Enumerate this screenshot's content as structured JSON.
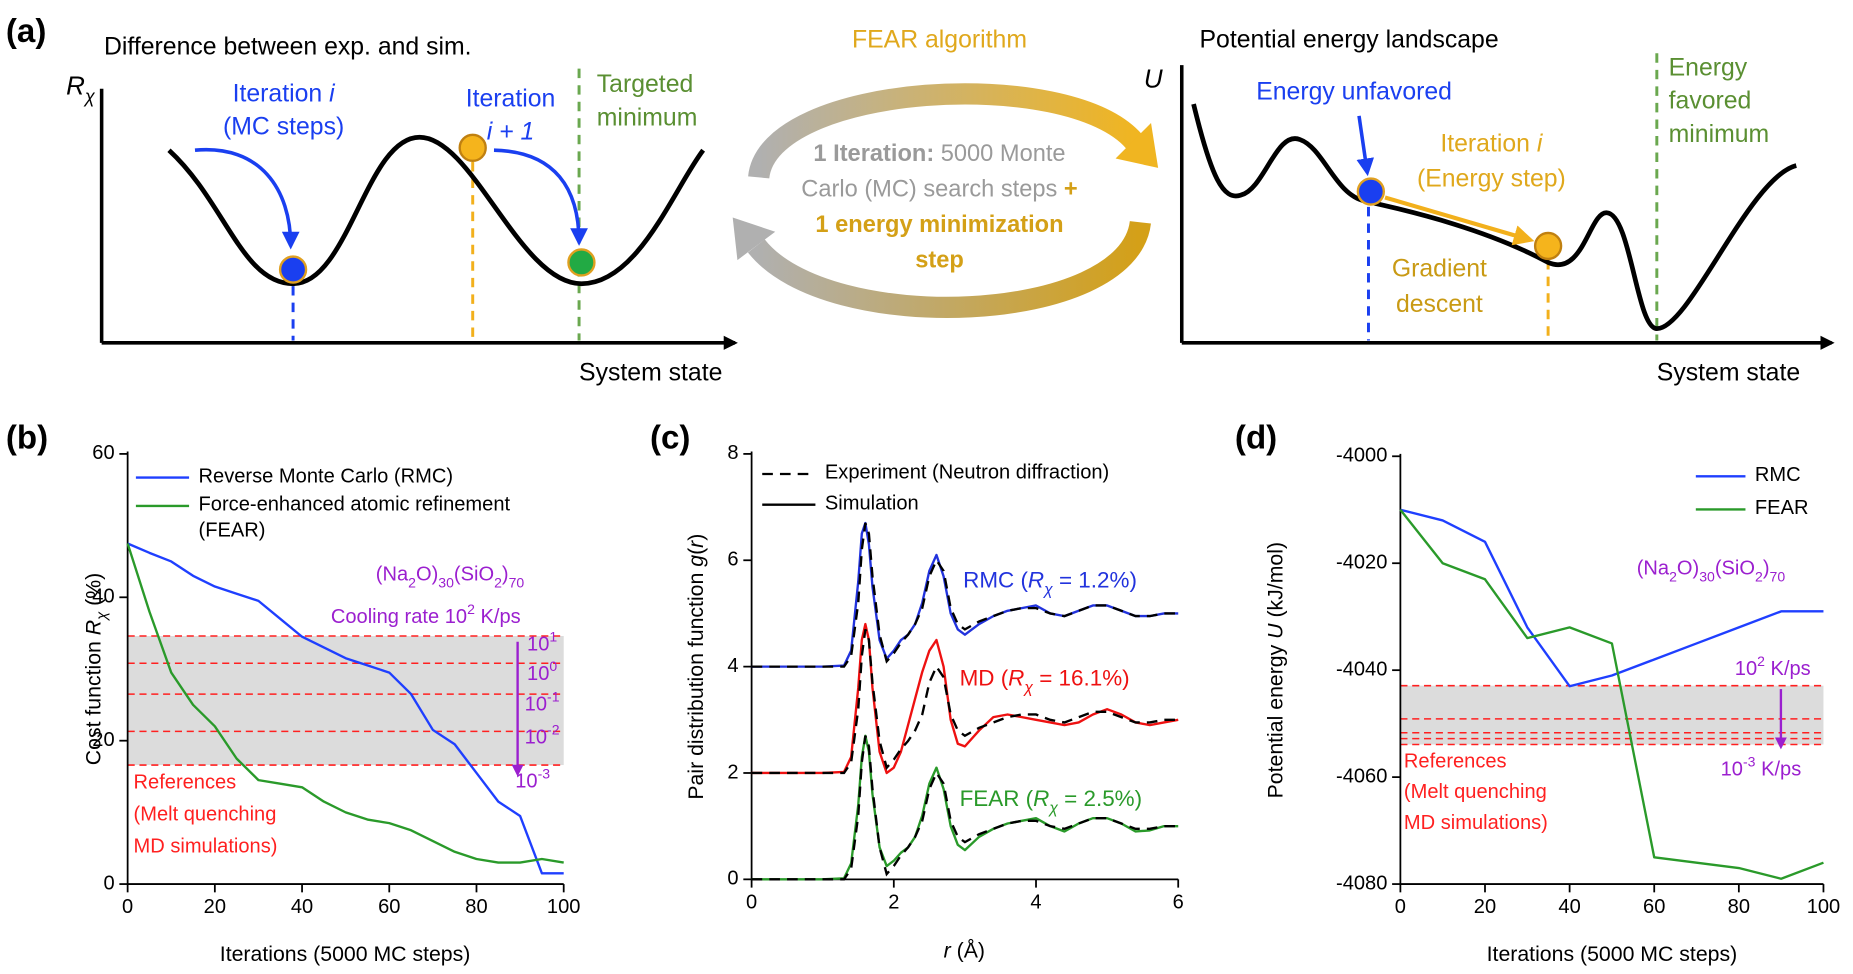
{
  "diagram": {
    "texts": [
      {
        "lines": [
          [
            "(a)"
          ]
        ]
      },
      {
        "lines": [
          [
            "Difference between exp. and sim."
          ]
        ]
      },
      {
        "lines": [
          [
            {
              "text": "R",
              "fmt": "i"
            },
            {
              "text": "χ",
              "fmt": "sub-i"
            }
          ]
        ]
      },
      {
        "lines": [
          [
            "Iteration ",
            {
              "text": "i",
              "fmt": "i"
            }
          ],
          [
            "(MC steps)"
          ]
        ],
        "color": "#1a3ff0"
      },
      {
        "lines": [
          [
            "Iteration"
          ],
          [
            {
              "text": "i + 1",
              "fmt": "i"
            }
          ]
        ],
        "color": "#1a3ff0"
      },
      {
        "lines": [
          [
            "Targeted"
          ],
          [
            "minimum"
          ]
        ],
        "color": "#5a8f32"
      },
      {
        "lines": [
          [
            "System state"
          ]
        ]
      },
      {
        "lines": [
          [
            "FEAR algorithm"
          ]
        ],
        "color": "#e0a81c"
      },
      {
        "lines": [
          [
            {
              "text": "1 Iteration:",
              "fmt": "b"
            },
            " 5000 Monte"
          ],
          [
            "Carlo (MC) search steps ",
            {
              "text": "+",
              "fmt": "b",
              "color": "#d4a017"
            }
          ],
          [
            {
              "text": "1 energy minimization",
              "fmt": "b",
              "color": "#d4a017"
            }
          ],
          [
            {
              "text": "step",
              "fmt": "b",
              "color": "#d4a017"
            }
          ]
        ],
        "color": "#9a9a9a"
      },
      {
        "lines": [
          [
            "Potential energy landscape"
          ]
        ]
      },
      {
        "lines": [
          [
            {
              "text": "U",
              "fmt": "i"
            }
          ]
        ]
      },
      {
        "lines": [
          [
            "Energy unfavored"
          ]
        ],
        "color": "#1a3ff0"
      },
      {
        "lines": [
          [
            "Iteration ",
            {
              "text": "i",
              "fmt": "i"
            }
          ],
          [
            "(Energy step)"
          ]
        ],
        "color": "#e0a81c"
      },
      {
        "lines": [
          [
            "Gradient"
          ],
          [
            "descent"
          ]
        ],
        "color": "#c99a14"
      },
      {
        "lines": [
          [
            "Energy"
          ],
          [
            "favored"
          ],
          [
            "minimum"
          ]
        ],
        "color": "#5a8f32"
      },
      {
        "lines": [
          [
            "System state"
          ]
        ]
      }
    ]
  },
  "chart_data": [
    {
      "type": "line",
      "panel_label": "(b)",
      "xlabel": [
        "Iterations (5000 MC steps)"
      ],
      "ylabel": [
        "Cost function ",
        {
          "text": "R",
          "fmt": "i"
        },
        {
          "text": "χ",
          "fmt": "sub-i"
        },
        " (%)"
      ],
      "x": [
        0,
        5,
        10,
        15,
        20,
        25,
        30,
        35,
        40,
        45,
        50,
        55,
        60,
        65,
        70,
        75,
        80,
        85,
        90,
        95,
        100
      ],
      "series": [
        {
          "name": "Reverse Monte Carlo (RMC)",
          "color": "#1f3fff",
          "values": [
            47.5,
            46.2,
            45,
            43,
            41.5,
            40.5,
            39.5,
            37,
            34.5,
            33,
            31.5,
            30.5,
            29.5,
            26.5,
            21.5,
            19.5,
            15.5,
            11.5,
            9.5,
            1.5,
            1.5
          ]
        },
        {
          "name": "Force-enhanced atomic refinement (FEAR)",
          "color": "#2a9a2a",
          "values": [
            47.5,
            38,
            29.5,
            25,
            22,
            17.5,
            14.5,
            14,
            13.5,
            11.5,
            10,
            9,
            8.5,
            7.5,
            6,
            4.5,
            3.5,
            3,
            3,
            3.5,
            3
          ]
        }
      ],
      "xlim": [
        0,
        100
      ],
      "xticks": [
        0,
        20,
        40,
        60,
        80,
        100
      ],
      "ylim": [
        0,
        60
      ],
      "yticks": [
        0,
        20,
        40,
        60
      ],
      "legend": "upper left",
      "references": {
        "values": [
          34.6,
          30.8,
          26.5,
          21.3,
          16.6
        ],
        "color": "#ff2020",
        "band_color": "#dcdcdc"
      },
      "annotations": [
        {
          "segments": [
            "(Na",
            {
              "text": "2",
              "fmt": "sub"
            },
            "O)",
            {
              "text": "30",
              "fmt": "sub"
            },
            "(SiO",
            {
              "text": "2",
              "fmt": "sub"
            },
            ")",
            {
              "text": "70",
              "fmt": "sub"
            }
          ],
          "color": "#9b1fcf"
        },
        {
          "segments": [
            "Cooling rate 10",
            {
              "text": "2",
              "fmt": "sup"
            },
            " K/ps"
          ],
          "color": "#9b1fcf"
        },
        {
          "segments": [
            "10",
            {
              "text": "1",
              "fmt": "sup"
            }
          ],
          "color": "#9b1fcf"
        },
        {
          "segments": [
            "10",
            {
              "text": "0",
              "fmt": "sup"
            }
          ],
          "color": "#9b1fcf"
        },
        {
          "segments": [
            "10",
            {
              "text": "-1",
              "fmt": "sup"
            }
          ],
          "color": "#9b1fcf"
        },
        {
          "segments": [
            "10",
            {
              "text": "-2",
              "fmt": "sup"
            }
          ],
          "color": "#9b1fcf"
        },
        {
          "segments": [
            "10",
            {
              "text": "-3",
              "fmt": "sup"
            }
          ],
          "color": "#9b1fcf"
        },
        {
          "segments": [
            "References"
          ],
          "color": "#ff2020"
        },
        {
          "segments": [
            "(Melt quenching"
          ],
          "color": "#ff2020"
        },
        {
          "segments": [
            "MD simulations)"
          ],
          "color": "#ff2020"
        }
      ]
    },
    {
      "type": "line",
      "panel_label": "(c)",
      "xlabel": [
        {
          "text": "r",
          "fmt": "i"
        },
        " (Å)"
      ],
      "ylabel": [
        "Pair distribution function ",
        {
          "text": "g",
          "fmt": "i"
        },
        "(",
        {
          "text": "r",
          "fmt": "i"
        },
        ")"
      ],
      "x": [
        0,
        0.5,
        1.0,
        1.3,
        1.4,
        1.5,
        1.55,
        1.6,
        1.65,
        1.7,
        1.8,
        1.9,
        2.0,
        2.1,
        2.2,
        2.3,
        2.4,
        2.5,
        2.6,
        2.7,
        2.8,
        2.9,
        3.0,
        3.2,
        3.4,
        3.6,
        3.8,
        4.0,
        4.2,
        4.4,
        4.6,
        4.8,
        5.0,
        5.2,
        5.4,
        5.6,
        5.8,
        6.0
      ],
      "legend_entries": [
        {
          "name": "Experiment (Neutron diffraction)",
          "dash": true
        },
        {
          "name": "Simulation",
          "dash": false
        }
      ],
      "experiment_color": "#000000",
      "series": [
        {
          "label": [
            "RMC (",
            {
              "text": "R",
              "fmt": "i"
            },
            {
              "text": "χ",
              "fmt": "sub-i"
            },
            " = 1.2%)"
          ],
          "color": "#2233dd",
          "values": [
            4,
            4,
            4,
            4.02,
            4.3,
            5.6,
            6.5,
            6.7,
            6.3,
            5.5,
            4.5,
            4.15,
            4.3,
            4.5,
            4.6,
            4.8,
            5.2,
            5.8,
            6.1,
            5.7,
            5.0,
            4.7,
            4.6,
            4.8,
            4.95,
            5.05,
            5.1,
            5.15,
            5.0,
            4.95,
            5.05,
            5.15,
            5.15,
            5.05,
            4.95,
            4.95,
            5.0,
            5.0
          ],
          "experiment": [
            4,
            4,
            4,
            4.0,
            4.2,
            5.2,
            6.2,
            6.7,
            6.5,
            5.7,
            4.6,
            4.1,
            4.25,
            4.45,
            4.6,
            4.8,
            5.1,
            5.7,
            6.0,
            5.8,
            5.1,
            4.8,
            4.7,
            4.85,
            4.95,
            5.05,
            5.1,
            5.1,
            5.0,
            4.95,
            5.05,
            5.15,
            5.15,
            5.05,
            4.95,
            4.95,
            5.0,
            5.0
          ]
        },
        {
          "label": [
            "MD (",
            {
              "text": "R",
              "fmt": "i"
            },
            {
              "text": "χ",
              "fmt": "sub-i"
            },
            " = 16.1%)"
          ],
          "color": "#ee1111",
          "values": [
            2,
            2,
            2,
            2.02,
            2.3,
            3.6,
            4.5,
            4.8,
            4.5,
            3.6,
            2.4,
            2.0,
            2.1,
            2.4,
            2.9,
            3.4,
            3.9,
            4.3,
            4.5,
            4.0,
            3.0,
            2.55,
            2.5,
            2.8,
            3.05,
            3.1,
            3.05,
            3.0,
            2.95,
            2.9,
            2.95,
            3.1,
            3.2,
            3.1,
            2.95,
            2.9,
            2.95,
            3.0
          ],
          "experiment": [
            2,
            2,
            2,
            2.0,
            2.2,
            3.2,
            4.2,
            4.7,
            4.5,
            3.7,
            2.6,
            2.1,
            2.25,
            2.45,
            2.6,
            2.8,
            3.1,
            3.7,
            4.0,
            3.8,
            3.1,
            2.8,
            2.7,
            2.85,
            2.95,
            3.05,
            3.1,
            3.1,
            3.0,
            2.95,
            3.05,
            3.15,
            3.15,
            3.05,
            2.95,
            2.95,
            3.0,
            3.0
          ]
        },
        {
          "label": [
            "FEAR (",
            {
              "text": "R",
              "fmt": "i"
            },
            {
              "text": "χ",
              "fmt": "sub-i"
            },
            " = 2.5%)"
          ],
          "color": "#2a9a2a",
          "values": [
            0,
            0,
            0,
            0.02,
            0.3,
            1.4,
            2.3,
            2.7,
            2.4,
            1.6,
            0.6,
            0.25,
            0.35,
            0.5,
            0.6,
            0.8,
            1.2,
            1.8,
            2.1,
            1.7,
            1.0,
            0.65,
            0.55,
            0.8,
            0.95,
            1.05,
            1.1,
            1.15,
            1.0,
            0.9,
            1.05,
            1.15,
            1.15,
            1.05,
            0.9,
            0.92,
            1.0,
            1.0
          ],
          "experiment": [
            0,
            0,
            0,
            0.0,
            0.2,
            1.2,
            2.2,
            2.7,
            2.5,
            1.7,
            0.6,
            0.1,
            0.25,
            0.45,
            0.6,
            0.8,
            1.1,
            1.7,
            2.0,
            1.8,
            1.1,
            0.8,
            0.7,
            0.85,
            0.95,
            1.05,
            1.1,
            1.1,
            1.0,
            0.95,
            1.05,
            1.15,
            1.15,
            1.05,
            0.95,
            0.95,
            1.0,
            1.0
          ]
        }
      ],
      "xlim": [
        0,
        6
      ],
      "xticks": [
        0,
        2,
        4,
        6
      ],
      "ylim": [
        0,
        8
      ],
      "yticks": [
        0,
        2,
        4,
        6,
        8
      ],
      "legend": "upper left"
    },
    {
      "type": "line",
      "panel_label": "(d)",
      "xlabel": [
        "Iterations (5000 MC steps)"
      ],
      "ylabel": [
        "Potential energy ",
        {
          "text": "U",
          "fmt": "i"
        },
        " (kJ/mol)"
      ],
      "x": [
        0,
        10,
        20,
        30,
        40,
        50,
        60,
        70,
        80,
        90,
        100
      ],
      "series": [
        {
          "name": "RMC",
          "color": "#1f3fff",
          "values": [
            -4010,
            -4012,
            -4016,
            -4032,
            -4043,
            -4041,
            -4038,
            -4035,
            -4032,
            -4029,
            -4029
          ]
        },
        {
          "name": "FEAR",
          "color": "#2a9a2a",
          "values": [
            -4010,
            -4020,
            -4023,
            -4034,
            -4032,
            -4035,
            -4075,
            -4076,
            -4077,
            -4079,
            -4076
          ]
        }
      ],
      "xlim": [
        0,
        100
      ],
      "xticks": [
        0,
        20,
        40,
        60,
        80,
        100
      ],
      "ylim": [
        -4080,
        -4000
      ],
      "yticks": [
        -4000,
        -4020,
        -4040,
        -4060,
        -4080
      ],
      "legend": "upper right",
      "references": {
        "values": [
          -4042.9,
          -4049.1,
          -4051.7,
          -4052.8,
          -4053.9
        ],
        "color": "#ff2020",
        "band_color": "#dcdcdc"
      },
      "annotations": [
        {
          "segments": [
            "(Na",
            {
              "text": "2",
              "fmt": "sub"
            },
            "O)",
            {
              "text": "30",
              "fmt": "sub"
            },
            "(SiO",
            {
              "text": "2",
              "fmt": "sub"
            },
            ")",
            {
              "text": "70",
              "fmt": "sub"
            }
          ],
          "color": "#9b1fcf"
        },
        {
          "segments": [
            "10",
            {
              "text": "2",
              "fmt": "sup"
            },
            " K/ps"
          ],
          "color": "#9b1fcf"
        },
        {
          "segments": [
            "10",
            {
              "text": "-3",
              "fmt": "sup"
            },
            " K/ps"
          ],
          "color": "#9b1fcf"
        },
        {
          "segments": [
            "References"
          ],
          "color": "#ff2020"
        },
        {
          "segments": [
            "(Melt quenching"
          ],
          "color": "#ff2020"
        },
        {
          "segments": [
            "MD simulations)"
          ],
          "color": "#ff2020"
        }
      ]
    }
  ]
}
